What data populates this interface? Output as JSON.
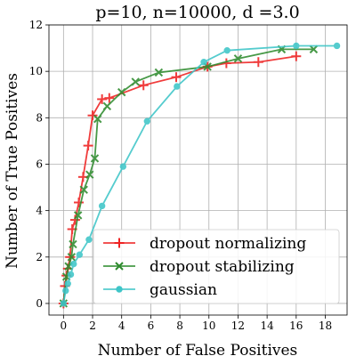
{
  "chart_data": {
    "type": "line",
    "title": "p=10, n=10000, d =3.0",
    "xlabel": "Number of False Positives",
    "ylabel": "Number of True Positives",
    "xlim": [
      -1.0,
      19.5
    ],
    "ylim": [
      -0.5,
      12
    ],
    "xticks": [
      0,
      2,
      4,
      6,
      8,
      10,
      12,
      14,
      16,
      18
    ],
    "yticks": [
      0,
      2,
      4,
      6,
      8,
      10,
      12
    ],
    "xtick_labels": [
      "0",
      "2",
      "4",
      "6",
      "8",
      "10",
      "12",
      "14",
      "16",
      "18"
    ],
    "ytick_labels": [
      "0",
      "2",
      "4",
      "6",
      "8",
      "10",
      "12"
    ],
    "grid": true,
    "legend_position": "lower-right",
    "series": [
      {
        "name": "dropout normalizing",
        "color": "#ee2222",
        "marker": "plus",
        "x": [
          0.0,
          0.1,
          0.2,
          0.3,
          0.45,
          0.6,
          0.8,
          1.05,
          1.35,
          1.7,
          2.0,
          2.65,
          3.15,
          5.5,
          7.75,
          9.9,
          11.2,
          13.4,
          16.0
        ],
        "y": [
          0.0,
          0.75,
          1.2,
          1.5,
          2.0,
          3.2,
          3.6,
          4.35,
          5.45,
          6.8,
          8.1,
          8.8,
          8.85,
          9.4,
          9.75,
          10.2,
          10.35,
          10.4,
          10.65
        ]
      },
      {
        "name": "dropout stabilizing",
        "color": "#2e8b2e",
        "marker": "x",
        "x": [
          0.0,
          0.2,
          0.35,
          0.55,
          0.65,
          1.0,
          1.4,
          1.8,
          2.15,
          2.35,
          3.0,
          4.0,
          4.95,
          6.55,
          9.9,
          12.0,
          15.0,
          17.2
        ],
        "y": [
          0.0,
          1.15,
          1.6,
          2.0,
          2.55,
          3.8,
          4.9,
          5.55,
          6.25,
          7.95,
          8.5,
          9.1,
          9.55,
          9.95,
          10.2,
          10.55,
          10.95,
          10.95
        ]
      },
      {
        "name": "gaussian",
        "color": "#3ec5c8",
        "marker": "circle",
        "x": [
          0.0,
          0.15,
          0.3,
          0.5,
          0.7,
          1.1,
          1.75,
          2.65,
          4.1,
          5.75,
          7.8,
          9.65,
          11.25,
          16.0,
          18.8
        ],
        "y": [
          0.0,
          0.55,
          0.85,
          1.25,
          1.7,
          2.1,
          2.75,
          4.2,
          5.9,
          7.85,
          9.35,
          10.4,
          10.9,
          11.1,
          11.1
        ]
      }
    ]
  }
}
